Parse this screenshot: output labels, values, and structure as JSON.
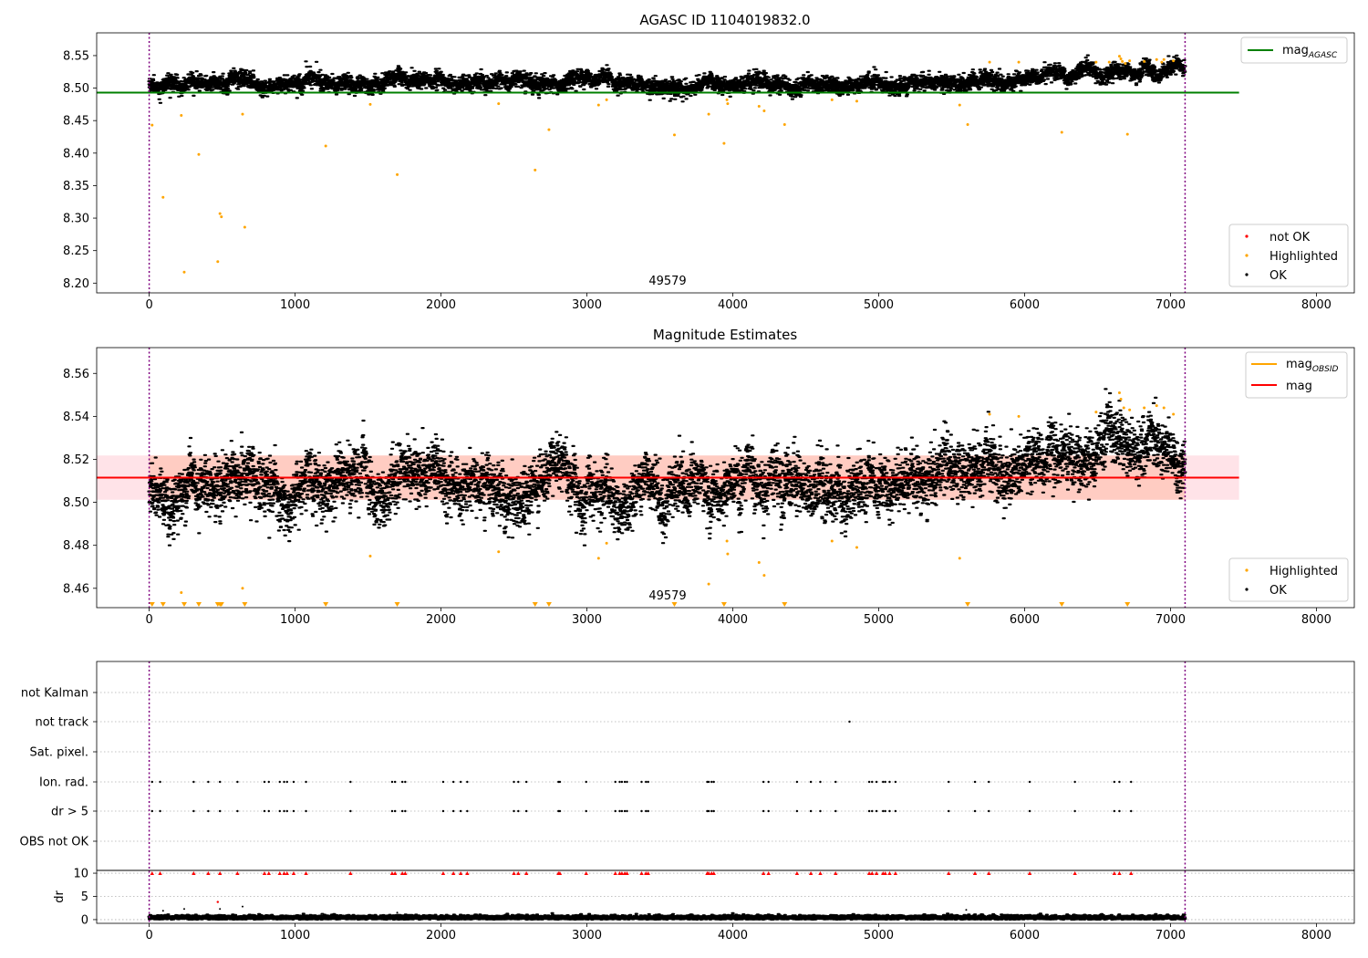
{
  "colors": {
    "ok": "#000000",
    "highlighted": "#ffa500",
    "not_ok": "#ff0000",
    "mag_agasc": "#008000",
    "mag_obsid": "#ffa500",
    "mag": "#ff0000",
    "obs_boundary": "#800080",
    "band": "#ffc0cb",
    "grid": "#b0b0b0"
  },
  "chart_data": [
    {
      "type": "scatter",
      "title": "AGASC ID 1104019832.0",
      "xlim": [
        -360,
        8260
      ],
      "ylim": [
        8.185,
        8.585
      ],
      "xticks": [
        "0",
        "1000",
        "2000",
        "3000",
        "4000",
        "5000",
        "6000",
        "7000",
        "8000"
      ],
      "yticks": [
        "8.20",
        "8.25",
        "8.30",
        "8.35",
        "8.40",
        "8.45",
        "8.50",
        "8.55"
      ],
      "annotation": "49579",
      "obs_boundaries": [
        0,
        7100
      ],
      "legend_lines": [
        {
          "label": "mag",
          "subscript": "AGASC",
          "value": 8.493,
          "x_range": [
            -360,
            7470
          ]
        }
      ],
      "legend_points": [
        "not OK",
        "Highlighted",
        "OK"
      ],
      "ok_series": {
        "n_points": 7100,
        "x_range": [
          0,
          7100
        ],
        "trend": [
          [
            0,
            8.508
          ],
          [
            4500,
            8.508
          ],
          [
            5500,
            8.513
          ],
          [
            7100,
            8.524
          ]
        ],
        "spread": 0.007
      },
      "highlighted_points": [
        [
          20,
          8.443
        ],
        [
          95,
          8.332
        ],
        [
          220,
          8.458
        ],
        [
          240,
          8.217
        ],
        [
          340,
          8.398
        ],
        [
          470,
          8.233
        ],
        [
          485,
          8.307
        ],
        [
          495,
          8.302
        ],
        [
          640,
          8.46
        ],
        [
          655,
          8.286
        ],
        [
          1210,
          8.411
        ],
        [
          1515,
          8.475
        ],
        [
          1700,
          8.367
        ],
        [
          2395,
          8.476
        ],
        [
          2645,
          8.374
        ],
        [
          2740,
          8.436
        ],
        [
          3080,
          8.474
        ],
        [
          3135,
          8.482
        ],
        [
          3600,
          8.428
        ],
        [
          3835,
          8.46
        ],
        [
          3940,
          8.415
        ],
        [
          3960,
          8.482
        ],
        [
          3965,
          8.476
        ],
        [
          4180,
          8.472
        ],
        [
          4215,
          8.465
        ],
        [
          4355,
          8.444
        ],
        [
          4680,
          8.482
        ],
        [
          4850,
          8.48
        ],
        [
          5555,
          8.474
        ],
        [
          5610,
          8.444
        ],
        [
          5760,
          8.54
        ],
        [
          5960,
          8.54
        ],
        [
          6255,
          8.432
        ],
        [
          6705,
          8.429
        ],
        [
          6490,
          8.54
        ],
        [
          6580,
          8.54
        ],
        [
          6650,
          8.549
        ],
        [
          6660,
          8.545
        ],
        [
          6670,
          8.541
        ],
        [
          6690,
          8.538
        ],
        [
          6720,
          8.542
        ],
        [
          6820,
          8.541
        ],
        [
          6905,
          8.544
        ],
        [
          6940,
          8.54
        ],
        [
          6955,
          8.544
        ],
        [
          7020,
          8.542
        ]
      ]
    },
    {
      "type": "scatter",
      "title": "Magnitude Estimates",
      "xlim": [
        -360,
        8260
      ],
      "ylim": [
        8.451,
        8.572
      ],
      "xticks": [
        "0",
        "1000",
        "2000",
        "3000",
        "4000",
        "5000",
        "6000",
        "7000",
        "8000"
      ],
      "yticks": [
        "8.46",
        "8.48",
        "8.50",
        "8.52",
        "8.54",
        "8.56"
      ],
      "annotation": "49579",
      "obs_boundaries": [
        0,
        7100
      ],
      "legend_lines": [
        {
          "label": "mag",
          "subscript": "OBSID",
          "color_key": "mag_obsid"
        },
        {
          "label": "mag",
          "color_key": "mag",
          "value": 8.5115,
          "x_range": [
            -360,
            7470
          ]
        }
      ],
      "band": {
        "y_range": [
          8.5012,
          8.5218
        ],
        "x_range": [
          -360,
          7470
        ]
      },
      "orange_band": {
        "x_range": [
          0,
          7100
        ]
      },
      "legend_points": [
        "Highlighted",
        "OK"
      ],
      "ok_series": {
        "n_points": 7100,
        "x_range": [
          0,
          7100
        ],
        "trend": [
          [
            0,
            8.507
          ],
          [
            4500,
            8.507
          ],
          [
            5500,
            8.513
          ],
          [
            7100,
            8.524
          ]
        ],
        "spread": 0.0075
      },
      "highlighted_points": [
        [
          220,
          8.458
        ],
        [
          640,
          8.46
        ],
        [
          1515,
          8.475
        ],
        [
          2395,
          8.477
        ],
        [
          3080,
          8.474
        ],
        [
          3135,
          8.481
        ],
        [
          3835,
          8.462
        ],
        [
          3960,
          8.482
        ],
        [
          3965,
          8.476
        ],
        [
          4180,
          8.472
        ],
        [
          4215,
          8.466
        ],
        [
          4680,
          8.482
        ],
        [
          4850,
          8.479
        ],
        [
          5555,
          8.474
        ],
        [
          5760,
          8.541
        ],
        [
          5960,
          8.54
        ],
        [
          6490,
          8.542
        ],
        [
          6650,
          8.551
        ],
        [
          6660,
          8.548
        ],
        [
          6680,
          8.544
        ],
        [
          6720,
          8.543
        ],
        [
          6820,
          8.544
        ],
        [
          6905,
          8.545
        ],
        [
          6955,
          8.544
        ],
        [
          7020,
          8.541
        ]
      ],
      "out_of_range_markers_x": [
        20,
        95,
        240,
        340,
        470,
        485,
        495,
        655,
        1210,
        1700,
        2645,
        2740,
        3600,
        3940,
        4355,
        5610,
        6255,
        6705
      ]
    },
    {
      "type": "scatter",
      "title": "",
      "xlim": [
        -360,
        8260
      ],
      "xticks": [
        "0",
        "1000",
        "2000",
        "3000",
        "4000",
        "5000",
        "6000",
        "7000",
        "8000"
      ],
      "obs_boundaries": [
        0,
        7100
      ],
      "flag_rows": [
        "not Kalman",
        "not track",
        "Sat. pixel.",
        "Ion. rad.",
        "dr > 5",
        "OBS not OK"
      ],
      "not_track_x": [
        4800
      ],
      "flag_x": [
        20,
        75,
        305,
        405,
        485,
        605,
        790,
        820,
        895,
        925,
        945,
        990,
        1075,
        1380,
        1665,
        1685,
        1735,
        1755,
        2015,
        2085,
        2135,
        2180,
        2500,
        2530,
        2585,
        2805,
        2815,
        2995,
        3195,
        3225,
        3240,
        3260,
        3275,
        3375,
        3405,
        3420,
        3825,
        3835,
        3855,
        3870,
        4210,
        4245,
        4440,
        4535,
        4600,
        4705,
        4935,
        4955,
        4985,
        5030,
        5045,
        5075,
        5115,
        5480,
        5660,
        5755,
        6035,
        6345,
        6615,
        6650,
        6730
      ],
      "dr_ylabel": "dr",
      "dr_yticks": [
        "0",
        "5",
        "10"
      ],
      "dr_ylim": [
        -0.8,
        10.6
      ],
      "dr_clip_value": 10,
      "dr_series": {
        "n_points": 7100,
        "x_range": [
          0,
          7100
        ],
        "typical": 0.45
      },
      "dr_outliers": [
        [
          95,
          1.9
        ],
        [
          240,
          2.3
        ],
        [
          470,
          3.8
        ],
        [
          485,
          2.3
        ],
        [
          640,
          2.8
        ],
        [
          1700,
          1.5
        ],
        [
          5600,
          2.1
        ]
      ]
    }
  ]
}
